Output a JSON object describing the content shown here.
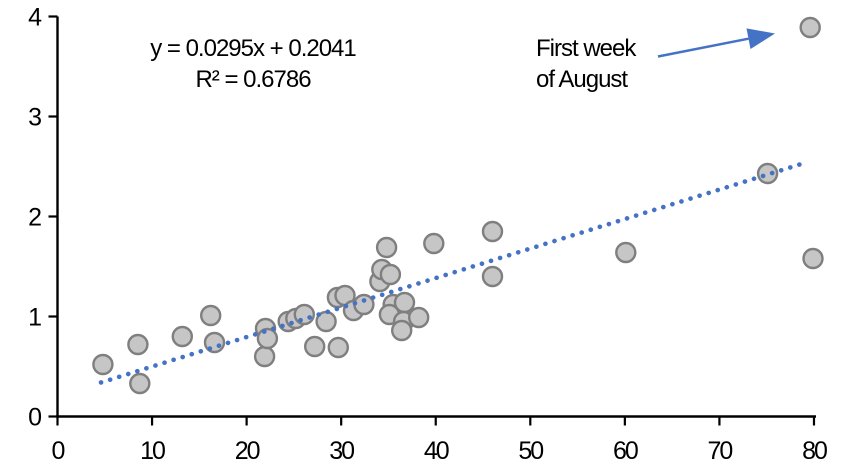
{
  "chart_data": {
    "type": "scatter",
    "equation": "y = 0.0295x + 0.2041",
    "r_squared": "R² = 0.6786",
    "annotation": {
      "lines": [
        "First week",
        "of August"
      ],
      "target_point": [
        79.6,
        3.89
      ]
    },
    "points": [
      [
        4.8,
        0.52
      ],
      [
        8.5,
        0.72
      ],
      [
        8.7,
        0.33
      ],
      [
        13.2,
        0.8
      ],
      [
        16.2,
        1.01
      ],
      [
        16.6,
        0.74
      ],
      [
        21.9,
        0.6
      ],
      [
        22.0,
        0.88
      ],
      [
        22.2,
        0.78
      ],
      [
        24.4,
        0.95
      ],
      [
        25.2,
        0.98
      ],
      [
        26.1,
        1.02
      ],
      [
        27.2,
        0.7
      ],
      [
        28.4,
        0.95
      ],
      [
        29.6,
        1.19
      ],
      [
        30.4,
        1.21
      ],
      [
        29.7,
        0.69
      ],
      [
        31.3,
        1.06
      ],
      [
        32.4,
        1.12
      ],
      [
        34.1,
        1.35
      ],
      [
        34.3,
        1.47
      ],
      [
        35.2,
        1.42
      ],
      [
        34.8,
        1.69
      ],
      [
        35.5,
        1.12
      ],
      [
        36.7,
        1.14
      ],
      [
        35.1,
        1.02
      ],
      [
        36.6,
        0.95
      ],
      [
        38.2,
        0.99
      ],
      [
        36.4,
        0.86
      ],
      [
        39.8,
        1.73
      ],
      [
        46.0,
        1.85
      ],
      [
        46.0,
        1.4
      ],
      [
        60.1,
        1.64
      ],
      [
        75.1,
        2.43
      ],
      [
        79.6,
        3.89
      ],
      [
        79.9,
        1.58
      ]
    ],
    "trendline": {
      "slope": 0.0295,
      "intercept": 0.2041,
      "x_start": 4.6,
      "x_end": 79.0,
      "style": "dotted"
    },
    "x_ticks": [
      0,
      10,
      20,
      30,
      40,
      50,
      60,
      70,
      80
    ],
    "y_ticks": [
      0,
      1,
      2,
      3,
      4
    ],
    "xlim": [
      0,
      80
    ],
    "ylim": [
      0,
      4
    ],
    "grid": false,
    "legend": "none",
    "colors": {
      "point_fill": "#c6c6c6",
      "point_stroke": "#7f7f7f",
      "trendline": "#4472c4",
      "arrow": "#4472c4",
      "axis": "#000000",
      "text": "#000000",
      "background": "#ffffff"
    }
  }
}
